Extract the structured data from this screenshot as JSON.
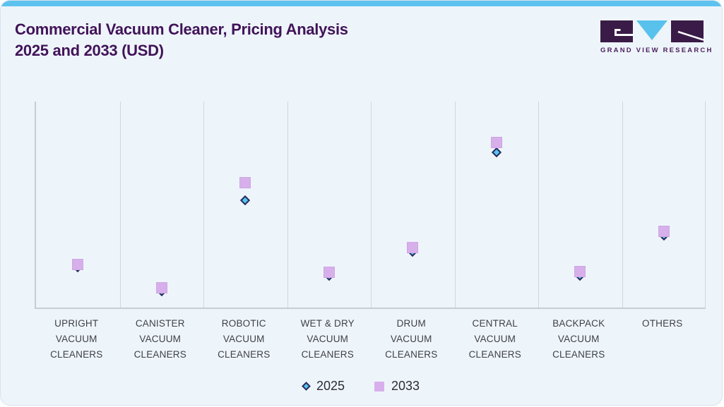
{
  "header": {
    "title_line1": "Commercial Vacuum Cleaner, Pricing Analysis",
    "title_line2": "2025 and 2033 (USD)",
    "brand_name": "GRAND VIEW RESEARCH"
  },
  "colors": {
    "card_background": "#eef5fa",
    "top_bar": "#5ec2ef",
    "title_text": "#411359",
    "axis_line": "#c7cdd3",
    "gridline": "#d2d6db",
    "series_2025_fill": "#55c6f1",
    "series_2025_border": "#2e2a5e",
    "series_2033_fill": "#d7b0eb",
    "label_text": "#3e3e48",
    "brand_purple": "#3a1b47",
    "brand_blue": "#58c2ed"
  },
  "chart_data": {
    "type": "scatter",
    "title": "Commercial Vacuum Cleaner, Pricing Analysis 2025 and 2033 (USD)",
    "xlabel": "",
    "ylabel": "",
    "y_axis_visible": false,
    "value_unit": "relative marker height, 0-100 of plot height (no numeric y-axis shown in source)",
    "ylim": [
      0,
      100
    ],
    "grid": "vertical category separators only",
    "legend_position": "bottom-center",
    "categories": [
      "UPRIGHT VACUUM CLEANERS",
      "CANISTER VACUUM CLEANERS",
      "ROBOTIC VACUUM CLEANERS",
      "WET & DRY VACUUM CLEANERS",
      "DRUM VACUUM CLEANERS",
      "CENTRAL VACUUM CLEANERS",
      "BACKPACK VACUUM CLEANERS",
      "OTHERS"
    ],
    "category_label_lines": [
      [
        "UPRIGHT",
        "VACUUM",
        "CLEANERS"
      ],
      [
        "CANISTER",
        "VACUUM",
        "CLEANERS"
      ],
      [
        "ROBOTIC",
        "VACUUM",
        "CLEANERS"
      ],
      [
        "WET & DRY",
        "VACUUM",
        "CLEANERS"
      ],
      [
        "DRUM",
        "VACUUM",
        "CLEANERS"
      ],
      [
        "CENTRAL",
        "VACUUM",
        "CLEANERS"
      ],
      [
        "BACKPACK",
        "VACUUM",
        "CLEANERS"
      ],
      [
        "OTHERS"
      ]
    ],
    "series": [
      {
        "name": "2025",
        "marker": "diamond",
        "color": "#55c6f1",
        "border_color": "#2e2a5e",
        "values": [
          19.5,
          8,
          52,
          15.5,
          27,
          75.5,
          15.5,
          35
        ]
      },
      {
        "name": "2033",
        "marker": "square",
        "color": "#d7b0eb",
        "values": [
          21,
          9.5,
          60.5,
          17,
          29,
          80,
          17.5,
          37
        ]
      }
    ]
  }
}
